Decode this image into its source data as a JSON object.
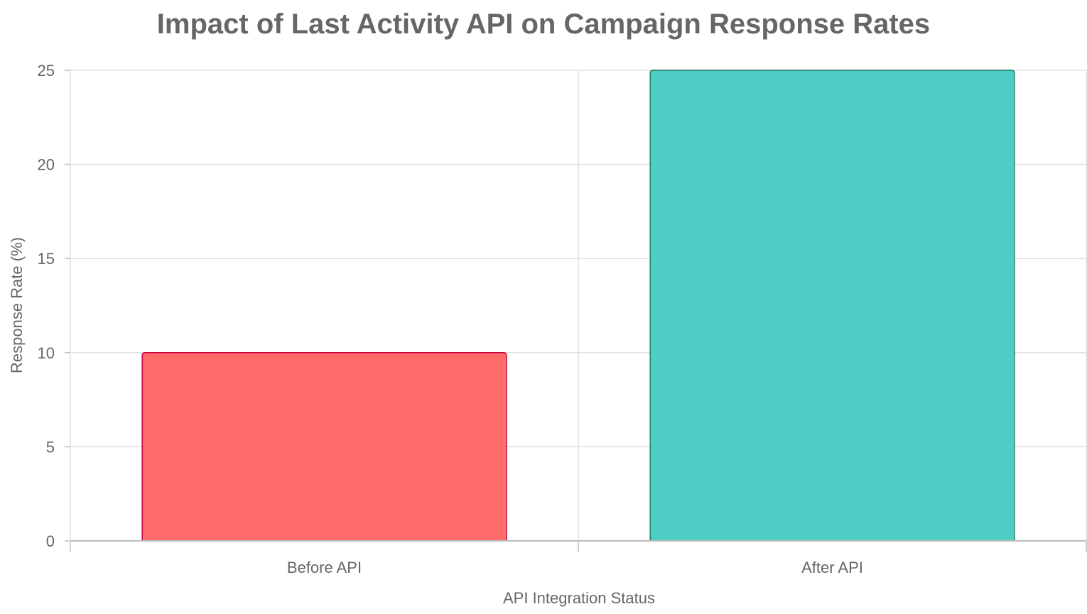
{
  "chart_data": {
    "type": "bar",
    "title": "Impact of Last Activity API on Campaign Response Rates",
    "xlabel": "API Integration Status",
    "ylabel": "Response Rate (%)",
    "categories": [
      "Before API",
      "After API"
    ],
    "values": [
      10,
      25
    ],
    "ylim": [
      0,
      25
    ],
    "yticks": [
      "0",
      "5",
      "10",
      "15",
      "20",
      "25"
    ],
    "grid": true,
    "legend": "none",
    "colors": {
      "bar_fill": [
        "#FF6B6B",
        "#4ECDC4"
      ],
      "bar_stroke": [
        "#C70039",
        "#1A7F64"
      ],
      "grid": "#e0e0e0",
      "axis": "#bdbdbd",
      "text": "#666666"
    }
  }
}
